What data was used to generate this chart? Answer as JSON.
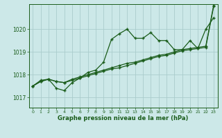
{
  "bg_color": "#cce8e8",
  "grid_color": "#aacccc",
  "line_color": "#1a5c1a",
  "text_color": "#1a5c1a",
  "xlabel": "Graphe pression niveau de la mer (hPa)",
  "xlim": [
    -0.5,
    23.5
  ],
  "ylim": [
    1016.55,
    1021.1
  ],
  "yticks": [
    1017,
    1018,
    1019,
    1020
  ],
  "xticks": [
    0,
    1,
    2,
    3,
    4,
    5,
    6,
    7,
    8,
    9,
    10,
    11,
    12,
    13,
    14,
    15,
    16,
    17,
    18,
    19,
    20,
    21,
    22,
    23
  ],
  "series1_x": [
    0,
    1,
    2,
    3,
    4,
    5,
    6,
    7,
    8,
    9,
    10,
    11,
    12,
    13,
    14,
    15,
    16,
    17,
    18,
    19,
    20,
    21,
    22,
    23
  ],
  "series1_y": [
    1017.5,
    1017.75,
    1017.8,
    1017.4,
    1017.3,
    1017.65,
    1017.85,
    1018.1,
    1018.2,
    1018.55,
    1019.55,
    1019.8,
    1020.0,
    1019.6,
    1019.6,
    1019.85,
    1019.5,
    1019.5,
    1019.1,
    1019.1,
    1019.5,
    1019.15,
    1020.0,
    1020.5
  ],
  "series2_x": [
    0,
    1,
    2,
    3,
    4,
    5,
    6,
    7,
    8,
    9,
    10,
    11,
    12,
    13,
    14,
    15,
    16,
    17,
    18,
    19,
    20,
    21,
    22,
    23
  ],
  "series2_y": [
    1017.5,
    1017.7,
    1017.8,
    1017.7,
    1017.65,
    1017.75,
    1017.85,
    1017.95,
    1018.05,
    1018.15,
    1018.25,
    1018.3,
    1018.4,
    1018.5,
    1018.6,
    1018.7,
    1018.8,
    1018.85,
    1018.95,
    1019.05,
    1019.1,
    1019.15,
    1019.2,
    1021.0
  ],
  "series3_x": [
    0,
    1,
    2,
    3,
    4,
    5,
    6,
    7,
    8,
    9,
    10,
    11,
    12,
    13,
    14,
    15,
    16,
    17,
    18,
    19,
    20,
    21,
    22,
    23
  ],
  "series3_y": [
    1017.5,
    1017.7,
    1017.8,
    1017.7,
    1017.65,
    1017.8,
    1017.9,
    1018.0,
    1018.1,
    1018.2,
    1018.3,
    1018.4,
    1018.5,
    1018.55,
    1018.65,
    1018.75,
    1018.85,
    1018.9,
    1019.0,
    1019.1,
    1019.15,
    1019.2,
    1019.25,
    1021.05
  ]
}
